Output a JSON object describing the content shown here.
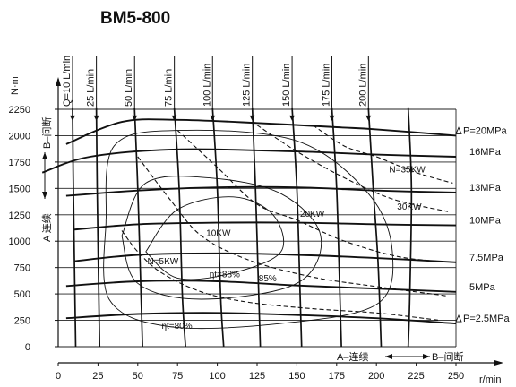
{
  "chart_data": {
    "type": "line",
    "title": "BM5-800",
    "xlabel": "r/min",
    "ylabel": "N·m",
    "xlim": [
      0,
      250
    ],
    "ylim": [
      0,
      2250
    ],
    "xticks": [
      0,
      25,
      50,
      75,
      100,
      125,
      150,
      175,
      200,
      225,
      250
    ],
    "yticks": [
      0,
      250,
      500,
      750,
      1000,
      1250,
      1500,
      1750,
      2000,
      2250
    ],
    "grid": true,
    "y_side_labels": {
      "top": "B–间断",
      "bottom": "A 连续"
    },
    "x_side_labels": {
      "left": "A–连续",
      "right": "B–间断"
    },
    "pressure_series": [
      {
        "name": "P=20MPa",
        "marker": "triangle",
        "values": [
          [
            5,
            1920
          ],
          [
            40,
            2130
          ],
          [
            75,
            2150
          ],
          [
            125,
            2120
          ],
          [
            175,
            2080
          ],
          [
            200,
            2060
          ],
          [
            250,
            2000
          ]
        ]
      },
      {
        "name": "16MPa",
        "values": [
          [
            -10,
            1650
          ],
          [
            20,
            1800
          ],
          [
            75,
            1870
          ],
          [
            150,
            1850
          ],
          [
            200,
            1820
          ],
          [
            250,
            1800
          ]
        ]
      },
      {
        "name": "13MPa",
        "values": [
          [
            5,
            1430
          ],
          [
            50,
            1480
          ],
          [
            100,
            1510
          ],
          [
            150,
            1510
          ],
          [
            200,
            1480
          ],
          [
            250,
            1460
          ]
        ]
      },
      {
        "name": "10MPa",
        "values": [
          [
            10,
            1110
          ],
          [
            50,
            1160
          ],
          [
            100,
            1175
          ],
          [
            150,
            1175
          ],
          [
            200,
            1160
          ],
          [
            250,
            1150
          ]
        ]
      },
      {
        "name": "7.5MPa",
        "values": [
          [
            10,
            810
          ],
          [
            50,
            870
          ],
          [
            100,
            885
          ],
          [
            150,
            870
          ],
          [
            200,
            840
          ],
          [
            250,
            800
          ]
        ]
      },
      {
        "name": "5MPa",
        "values": [
          [
            5,
            575
          ],
          [
            50,
            620
          ],
          [
            100,
            620
          ],
          [
            150,
            580
          ],
          [
            200,
            550
          ],
          [
            250,
            520
          ]
        ]
      },
      {
        "name": "P=2.5MPa",
        "marker": "triangle",
        "values": [
          [
            5,
            270
          ],
          [
            50,
            310
          ],
          [
            100,
            320
          ],
          [
            150,
            300
          ],
          [
            200,
            270
          ],
          [
            250,
            220
          ]
        ]
      }
    ],
    "flow_series": [
      {
        "name": "Q=10 L/min",
        "values": [
          [
            9,
            2260
          ],
          [
            9.5,
            1500
          ],
          [
            10.5,
            500
          ],
          [
            11,
            0
          ]
        ]
      },
      {
        "name": "25 L/min",
        "values": [
          [
            24,
            2260
          ],
          [
            24.5,
            1500
          ],
          [
            25.5,
            500
          ],
          [
            26,
            0
          ]
        ]
      },
      {
        "name": "50 L/min",
        "values": [
          [
            48,
            2260
          ],
          [
            50,
            1500
          ],
          [
            52,
            500
          ],
          [
            53,
            0
          ]
        ]
      },
      {
        "name": "75 L/min",
        "values": [
          [
            73,
            2260
          ],
          [
            76,
            1500
          ],
          [
            78,
            500
          ],
          [
            80,
            0
          ]
        ]
      },
      {
        "name": "100 L/min",
        "values": [
          [
            97,
            2260
          ],
          [
            100,
            1500
          ],
          [
            102,
            500
          ],
          [
            104,
            0
          ]
        ]
      },
      {
        "name": "125 L/min",
        "values": [
          [
            122,
            2260
          ],
          [
            124,
            1500
          ],
          [
            126,
            500
          ],
          [
            127,
            0
          ]
        ]
      },
      {
        "name": "150 L/min",
        "values": [
          [
            147,
            2260
          ],
          [
            150,
            1500
          ],
          [
            152,
            500
          ],
          [
            153,
            0
          ]
        ]
      },
      {
        "name": "175 L/min",
        "values": [
          [
            172,
            2260
          ],
          [
            175,
            1500
          ],
          [
            177,
            500
          ],
          [
            178,
            0
          ]
        ]
      },
      {
        "name": "200 L/min",
        "values": [
          [
            195,
            2260
          ],
          [
            198,
            1500
          ],
          [
            201,
            800
          ],
          [
            203,
            0
          ]
        ]
      },
      {
        "name": "",
        "values": [
          [
            220,
            2260
          ],
          [
            222,
            1500
          ],
          [
            221,
            500
          ],
          [
            220,
            0
          ]
        ]
      }
    ],
    "power_series": [
      {
        "name": "N=5KW",
        "values": [
          [
            40,
            1100
          ],
          [
            50,
            900
          ],
          [
            65,
            700
          ],
          [
            90,
            520
          ],
          [
            120,
            420
          ],
          [
            160,
            360
          ],
          [
            200,
            320
          ],
          [
            240,
            250
          ]
        ]
      },
      {
        "name": "10KW",
        "values": [
          [
            50,
            1800
          ],
          [
            70,
            1400
          ],
          [
            90,
            1050
          ],
          [
            120,
            820
          ],
          [
            160,
            660
          ],
          [
            200,
            570
          ],
          [
            245,
            480
          ]
        ]
      },
      {
        "name": "20KW",
        "values": [
          [
            75,
            2050
          ],
          [
            100,
            1700
          ],
          [
            125,
            1350
          ],
          [
            150,
            1200
          ],
          [
            180,
            1000
          ],
          [
            215,
            850
          ],
          [
            248,
            800
          ]
        ]
      },
      {
        "name": "30KW",
        "values": [
          [
            125,
            2100
          ],
          [
            150,
            1850
          ],
          [
            180,
            1600
          ],
          [
            210,
            1400
          ],
          [
            245,
            1280
          ]
        ]
      },
      {
        "name": "N=35KW",
        "values": [
          [
            160,
            2100
          ],
          [
            180,
            1900
          ],
          [
            200,
            1800
          ],
          [
            225,
            1650
          ],
          [
            248,
            1550
          ]
        ]
      }
    ],
    "efficiency_series": [
      {
        "name": "ηt=80%",
        "values": [
          [
            30,
            1200
          ],
          [
            35,
            1900
          ],
          [
            75,
            2050
          ],
          [
            150,
            1950
          ],
          [
            195,
            1450
          ],
          [
            210,
            900
          ],
          [
            200,
            400
          ],
          [
            140,
            220
          ],
          [
            70,
            190
          ],
          [
            32,
            450
          ],
          [
            30,
            1200
          ]
        ]
      },
      {
        "name": "85%",
        "values": [
          [
            40,
            1050
          ],
          [
            55,
            1550
          ],
          [
            95,
            1600
          ],
          [
            140,
            1450
          ],
          [
            165,
            1050
          ],
          [
            150,
            600
          ],
          [
            90,
            450
          ],
          [
            50,
            600
          ],
          [
            40,
            1050
          ]
        ]
      },
      {
        "name": "ηt=88%",
        "values": [
          [
            55,
            900
          ],
          [
            75,
            1300
          ],
          [
            110,
            1420
          ],
          [
            135,
            1250
          ],
          [
            140,
            900
          ],
          [
            110,
            700
          ],
          [
            75,
            650
          ],
          [
            55,
            900
          ]
        ]
      }
    ],
    "annotations": [
      {
        "text": "N=35KW",
        "x": 208,
        "y": 1650
      },
      {
        "text": "30KW",
        "x": 213,
        "y": 1300
      },
      {
        "text": "20KW",
        "x": 152,
        "y": 1230
      },
      {
        "text": "10KW",
        "x": 93,
        "y": 1050
      },
      {
        "text": "N=5KW",
        "x": 56,
        "y": 780
      },
      {
        "text": "ηt=88%",
        "x": 95,
        "y": 660
      },
      {
        "text": "85%",
        "x": 126,
        "y": 620
      },
      {
        "text": "ηt=80%",
        "x": 65,
        "y": 170
      }
    ]
  }
}
